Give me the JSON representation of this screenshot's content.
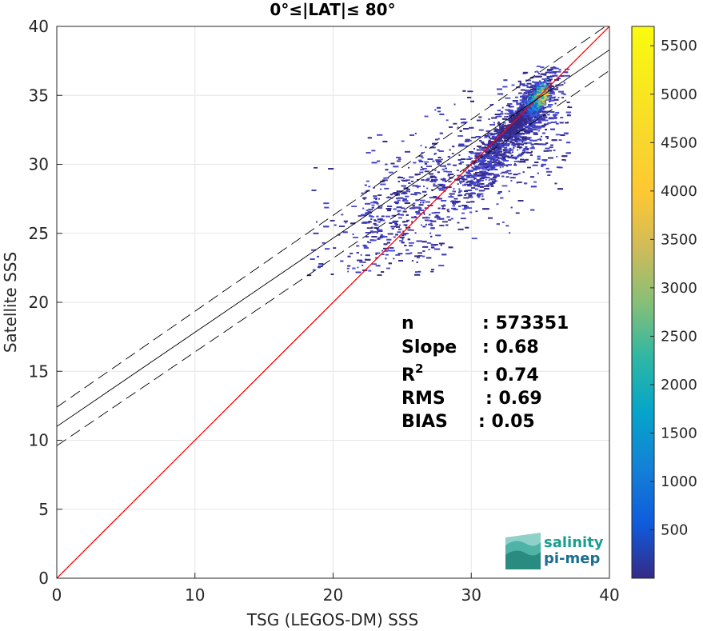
{
  "chart_data": {
    "type": "heatmap",
    "title": "0°≤|LAT|≤ 80°",
    "xlabel": "TSG (LEGOS-DM) SSS",
    "ylabel": "Satellite SSS",
    "xlim": [
      0,
      40
    ],
    "ylim": [
      0,
      40
    ],
    "xticks": [
      0,
      10,
      20,
      30,
      40
    ],
    "yticks": [
      0,
      5,
      10,
      15,
      20,
      25,
      30,
      35,
      40
    ],
    "grid": true,
    "colorbar": {
      "range": [
        1,
        5700
      ],
      "ticks": [
        500,
        1000,
        1500,
        2000,
        2500,
        3000,
        3500,
        4000,
        4500,
        5000,
        5500
      ],
      "colormap": "parula"
    },
    "lines": [
      {
        "role": "identity",
        "color": "#ff0000",
        "style": "solid",
        "x": [
          0,
          40
        ],
        "y": [
          0,
          40
        ]
      },
      {
        "role": "regression",
        "color": "#000000",
        "style": "solid",
        "x": [
          0,
          40
        ],
        "y": [
          11.0,
          38.3
        ]
      },
      {
        "role": "regression-upper",
        "color": "#000000",
        "style": "dashed",
        "x": [
          0,
          40
        ],
        "y": [
          12.4,
          40.2
        ]
      },
      {
        "role": "regression-lower",
        "color": "#000000",
        "style": "dashed",
        "x": [
          0,
          40
        ],
        "y": [
          9.6,
          36.8
        ]
      }
    ],
    "density_peak": {
      "x": 35.2,
      "y": 35.0
    },
    "stats": [
      {
        "label": "n",
        "value": ": 573351"
      },
      {
        "label": "Slope",
        "value": ": 0.68"
      },
      {
        "label": "R",
        "sup": "2",
        "value": ": 0.74"
      },
      {
        "label": "RMS",
        "value": ": 0.69"
      },
      {
        "label": "BIAS",
        "value": ": 0.05"
      }
    ]
  },
  "logo": {
    "line1": "salinity",
    "line2": "pi-mep",
    "color1": "#1a9e8f",
    "color2": "#1a6e8f"
  }
}
